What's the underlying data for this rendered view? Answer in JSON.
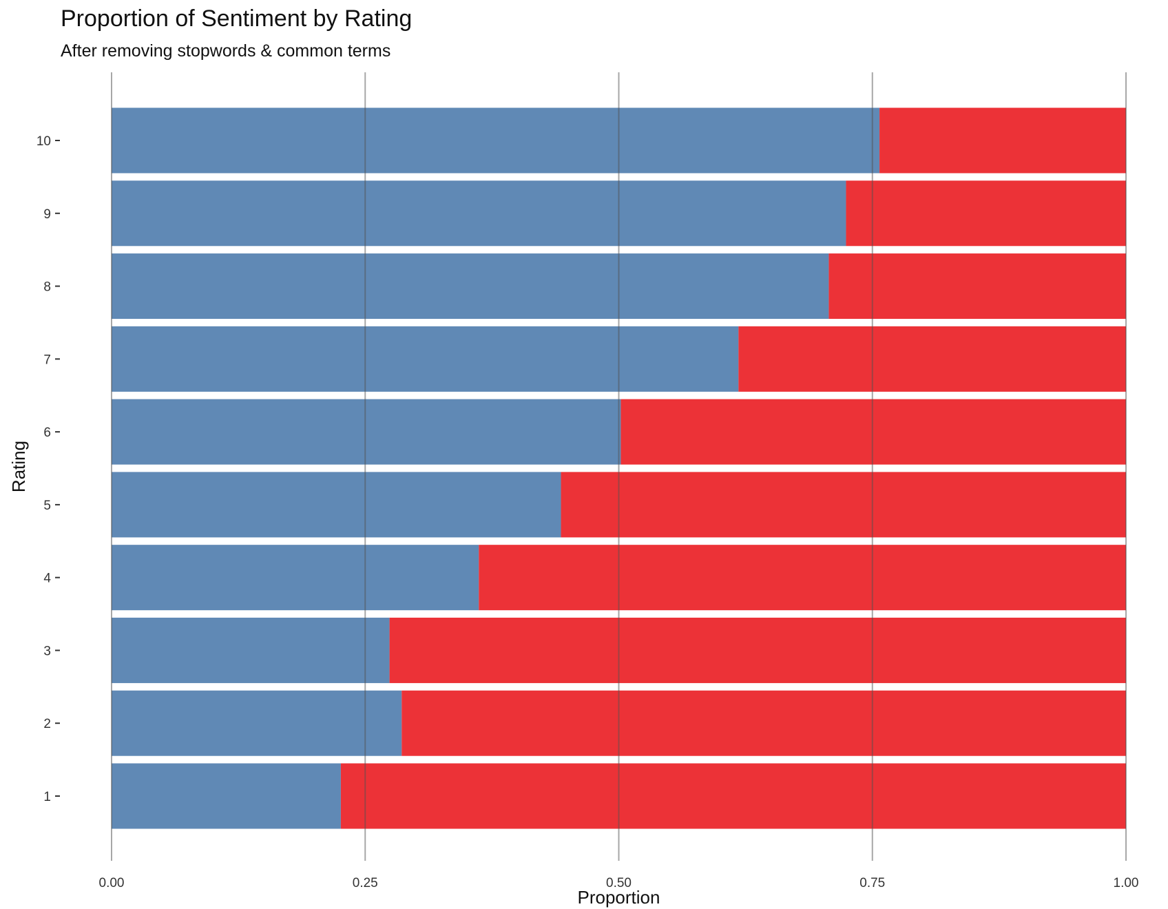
{
  "chart_data": {
    "type": "bar",
    "orientation": "horizontal",
    "stacked": "proportion",
    "title": "Proportion of Sentiment by Rating",
    "subtitle": "After removing stopwords & common terms",
    "xlabel": "Proportion",
    "ylabel": "Rating",
    "xlim": [
      0,
      1
    ],
    "x_ticks": [
      "0.00",
      "0.25",
      "0.50",
      "0.75",
      "1.00"
    ],
    "x_tick_values": [
      0,
      0.25,
      0.5,
      0.75,
      1
    ],
    "categories": [
      "1",
      "2",
      "3",
      "4",
      "5",
      "6",
      "7",
      "8",
      "9",
      "10"
    ],
    "series": [
      {
        "color": "#6089b5",
        "values": [
          0.226,
          0.286,
          0.274,
          0.362,
          0.443,
          0.502,
          0.618,
          0.707,
          0.724,
          0.757
        ]
      },
      {
        "color": "#ec3237",
        "values": [
          0.774,
          0.714,
          0.726,
          0.638,
          0.557,
          0.498,
          0.382,
          0.293,
          0.276,
          0.243
        ]
      }
    ],
    "grid": "vertical-major",
    "legend": "none"
  }
}
